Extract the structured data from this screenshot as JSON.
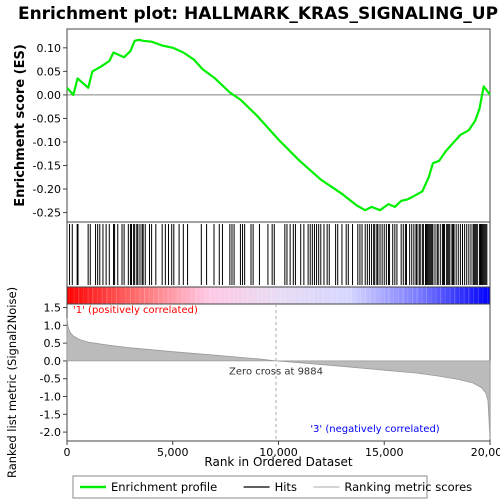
{
  "chart_data": {
    "title": "Enrichment plot: HALLMARK_KRAS_SIGNALING_UP",
    "type": "line",
    "colors": {
      "profile": "#00ee00",
      "positive": "#ff0000",
      "negative": "#0000ff",
      "hits": "#000000",
      "metric": "#bbbbbb"
    },
    "top_panel": {
      "ylabel": "Enrichment score (ES)",
      "ylim": [
        -0.27,
        0.14
      ],
      "yticks": [
        0.1,
        0.05,
        0.0,
        -0.05,
        -0.1,
        -0.15,
        -0.2,
        -0.25
      ],
      "ytick_labels": [
        "0.10",
        "0.05",
        "0.00",
        "-0.05",
        "-0.10",
        "-0.15",
        "-0.20",
        "-0.25"
      ],
      "series": {
        "x": [
          0,
          300,
          500,
          1000,
          1200,
          1600,
          2000,
          2200,
          2700,
          3000,
          3200,
          3400,
          3600,
          4000,
          4500,
          5000,
          5500,
          6000,
          6400,
          7000,
          7700,
          8200,
          9000,
          10000,
          11000,
          12000,
          13000,
          13700,
          14100,
          14400,
          14800,
          15200,
          15500,
          15800,
          16100,
          16400,
          16800,
          17100,
          17300,
          17600,
          17900,
          18200,
          18600,
          19000,
          19300,
          19500,
          19700,
          20000
        ],
        "y": [
          0.015,
          0.0,
          0.035,
          0.015,
          0.05,
          0.06,
          0.072,
          0.09,
          0.08,
          0.093,
          0.115,
          0.117,
          0.115,
          0.113,
          0.105,
          0.1,
          0.09,
          0.075,
          0.055,
          0.035,
          0.005,
          -0.01,
          -0.045,
          -0.095,
          -0.14,
          -0.18,
          -0.21,
          -0.235,
          -0.245,
          -0.238,
          -0.245,
          -0.232,
          -0.238,
          -0.225,
          -0.222,
          -0.215,
          -0.205,
          -0.175,
          -0.145,
          -0.14,
          -0.12,
          -0.105,
          -0.085,
          -0.075,
          -0.055,
          -0.03,
          0.018,
          0.0
        ]
      }
    },
    "hits": [
      120,
      250,
      480,
      520,
      1000,
      1100,
      1350,
      1450,
      1550,
      1700,
      1850,
      2000,
      2200,
      2250,
      2400,
      2600,
      2700,
      2900,
      3000,
      3050,
      3150,
      3200,
      3300,
      3350,
      3450,
      3550,
      3600,
      3700,
      3900,
      4000,
      4200,
      4500,
      4650,
      4800,
      4950,
      5050,
      5300,
      5500,
      5700,
      6350,
      6600,
      6950,
      7200,
      7350,
      7700,
      7800,
      7900,
      8200,
      8300,
      8400,
      8700,
      8800,
      9100,
      9500,
      9700,
      9800,
      10300,
      10400,
      10550,
      10700,
      10800,
      11050,
      11200,
      11400,
      11500,
      11600,
      11700,
      11800,
      11900,
      12000,
      12150,
      12300,
      12400,
      12700,
      12800,
      13000,
      13200,
      13300,
      13500,
      13750,
      13850,
      13950,
      14100,
      14200,
      14300,
      14400,
      14500,
      14550,
      14650,
      14700,
      14800,
      14900,
      15000,
      15100,
      15200,
      15250,
      15400,
      15500,
      15600,
      15800,
      15900,
      16000,
      16050,
      16200,
      16300,
      16400,
      16500,
      16550,
      16650,
      16700,
      16800,
      16850,
      16950,
      17000,
      17050,
      17100,
      17150,
      17200,
      17250,
      17300,
      17400,
      17500,
      17550,
      17650,
      17750,
      17800,
      17850,
      17950,
      18000,
      18050,
      18100,
      18200,
      18250,
      18300,
      18400,
      18500,
      18600,
      18700,
      18800,
      18900,
      19000,
      19100,
      19200,
      19250,
      19300,
      19350,
      19400,
      19500,
      19550,
      19600,
      19650,
      19700,
      19750,
      19800,
      19850
    ],
    "heatmap_band": {
      "stops": [
        "#ff0000",
        "#ff6f6f",
        "#ffc8e4",
        "#e8dcf4",
        "#d6d6ff",
        "#7a7aff",
        "#0000ff"
      ]
    },
    "bottom_panel": {
      "ylabel": "Ranked list metric (Signal2Noise)",
      "ylim": [
        -2.25,
        1.6
      ],
      "yticks": [
        1.5,
        1.0,
        0.5,
        0.0,
        -0.5,
        -1.0,
        -1.5,
        -2.0
      ],
      "ytick_labels": [
        "1.5",
        "1.0",
        "0.5",
        "0.0",
        "-0.5",
        "-1.0",
        "-1.5",
        "-2.0"
      ],
      "metric": {
        "x": [
          0,
          50,
          150,
          300,
          600,
          1000,
          2000,
          3000,
          5000,
          7000,
          8000,
          9000,
          9884,
          11000,
          13000,
          15000,
          16500,
          17500,
          18500,
          19200,
          19600,
          19800,
          19900,
          19950,
          20000
        ],
        "y": [
          1.2,
          0.95,
          0.8,
          0.7,
          0.6,
          0.53,
          0.44,
          0.37,
          0.26,
          0.16,
          0.11,
          0.06,
          0.0,
          -0.05,
          -0.15,
          -0.26,
          -0.34,
          -0.42,
          -0.52,
          -0.62,
          -0.75,
          -0.9,
          -1.1,
          -1.6,
          -2.2
        ]
      },
      "zero_cross_label": "Zero cross at 9884",
      "zero_cross_x": 9884,
      "positive_label": "'1' (positively correlated)",
      "negative_label": "'3' (negatively correlated)"
    },
    "xlabel": "Rank in Ordered Dataset",
    "xlim": [
      0,
      20000
    ],
    "xticks": [
      0,
      5000,
      10000,
      15000,
      20000
    ],
    "xtick_labels": [
      "0",
      "5,000",
      "10,000",
      "15,000",
      "20,000"
    ],
    "legend": {
      "placement": "bottom",
      "entries": [
        {
          "label": "Enrichment profile",
          "kind": "profile"
        },
        {
          "label": "Hits",
          "kind": "hits"
        },
        {
          "label": "Ranking metric scores",
          "kind": "metric"
        }
      ]
    }
  }
}
